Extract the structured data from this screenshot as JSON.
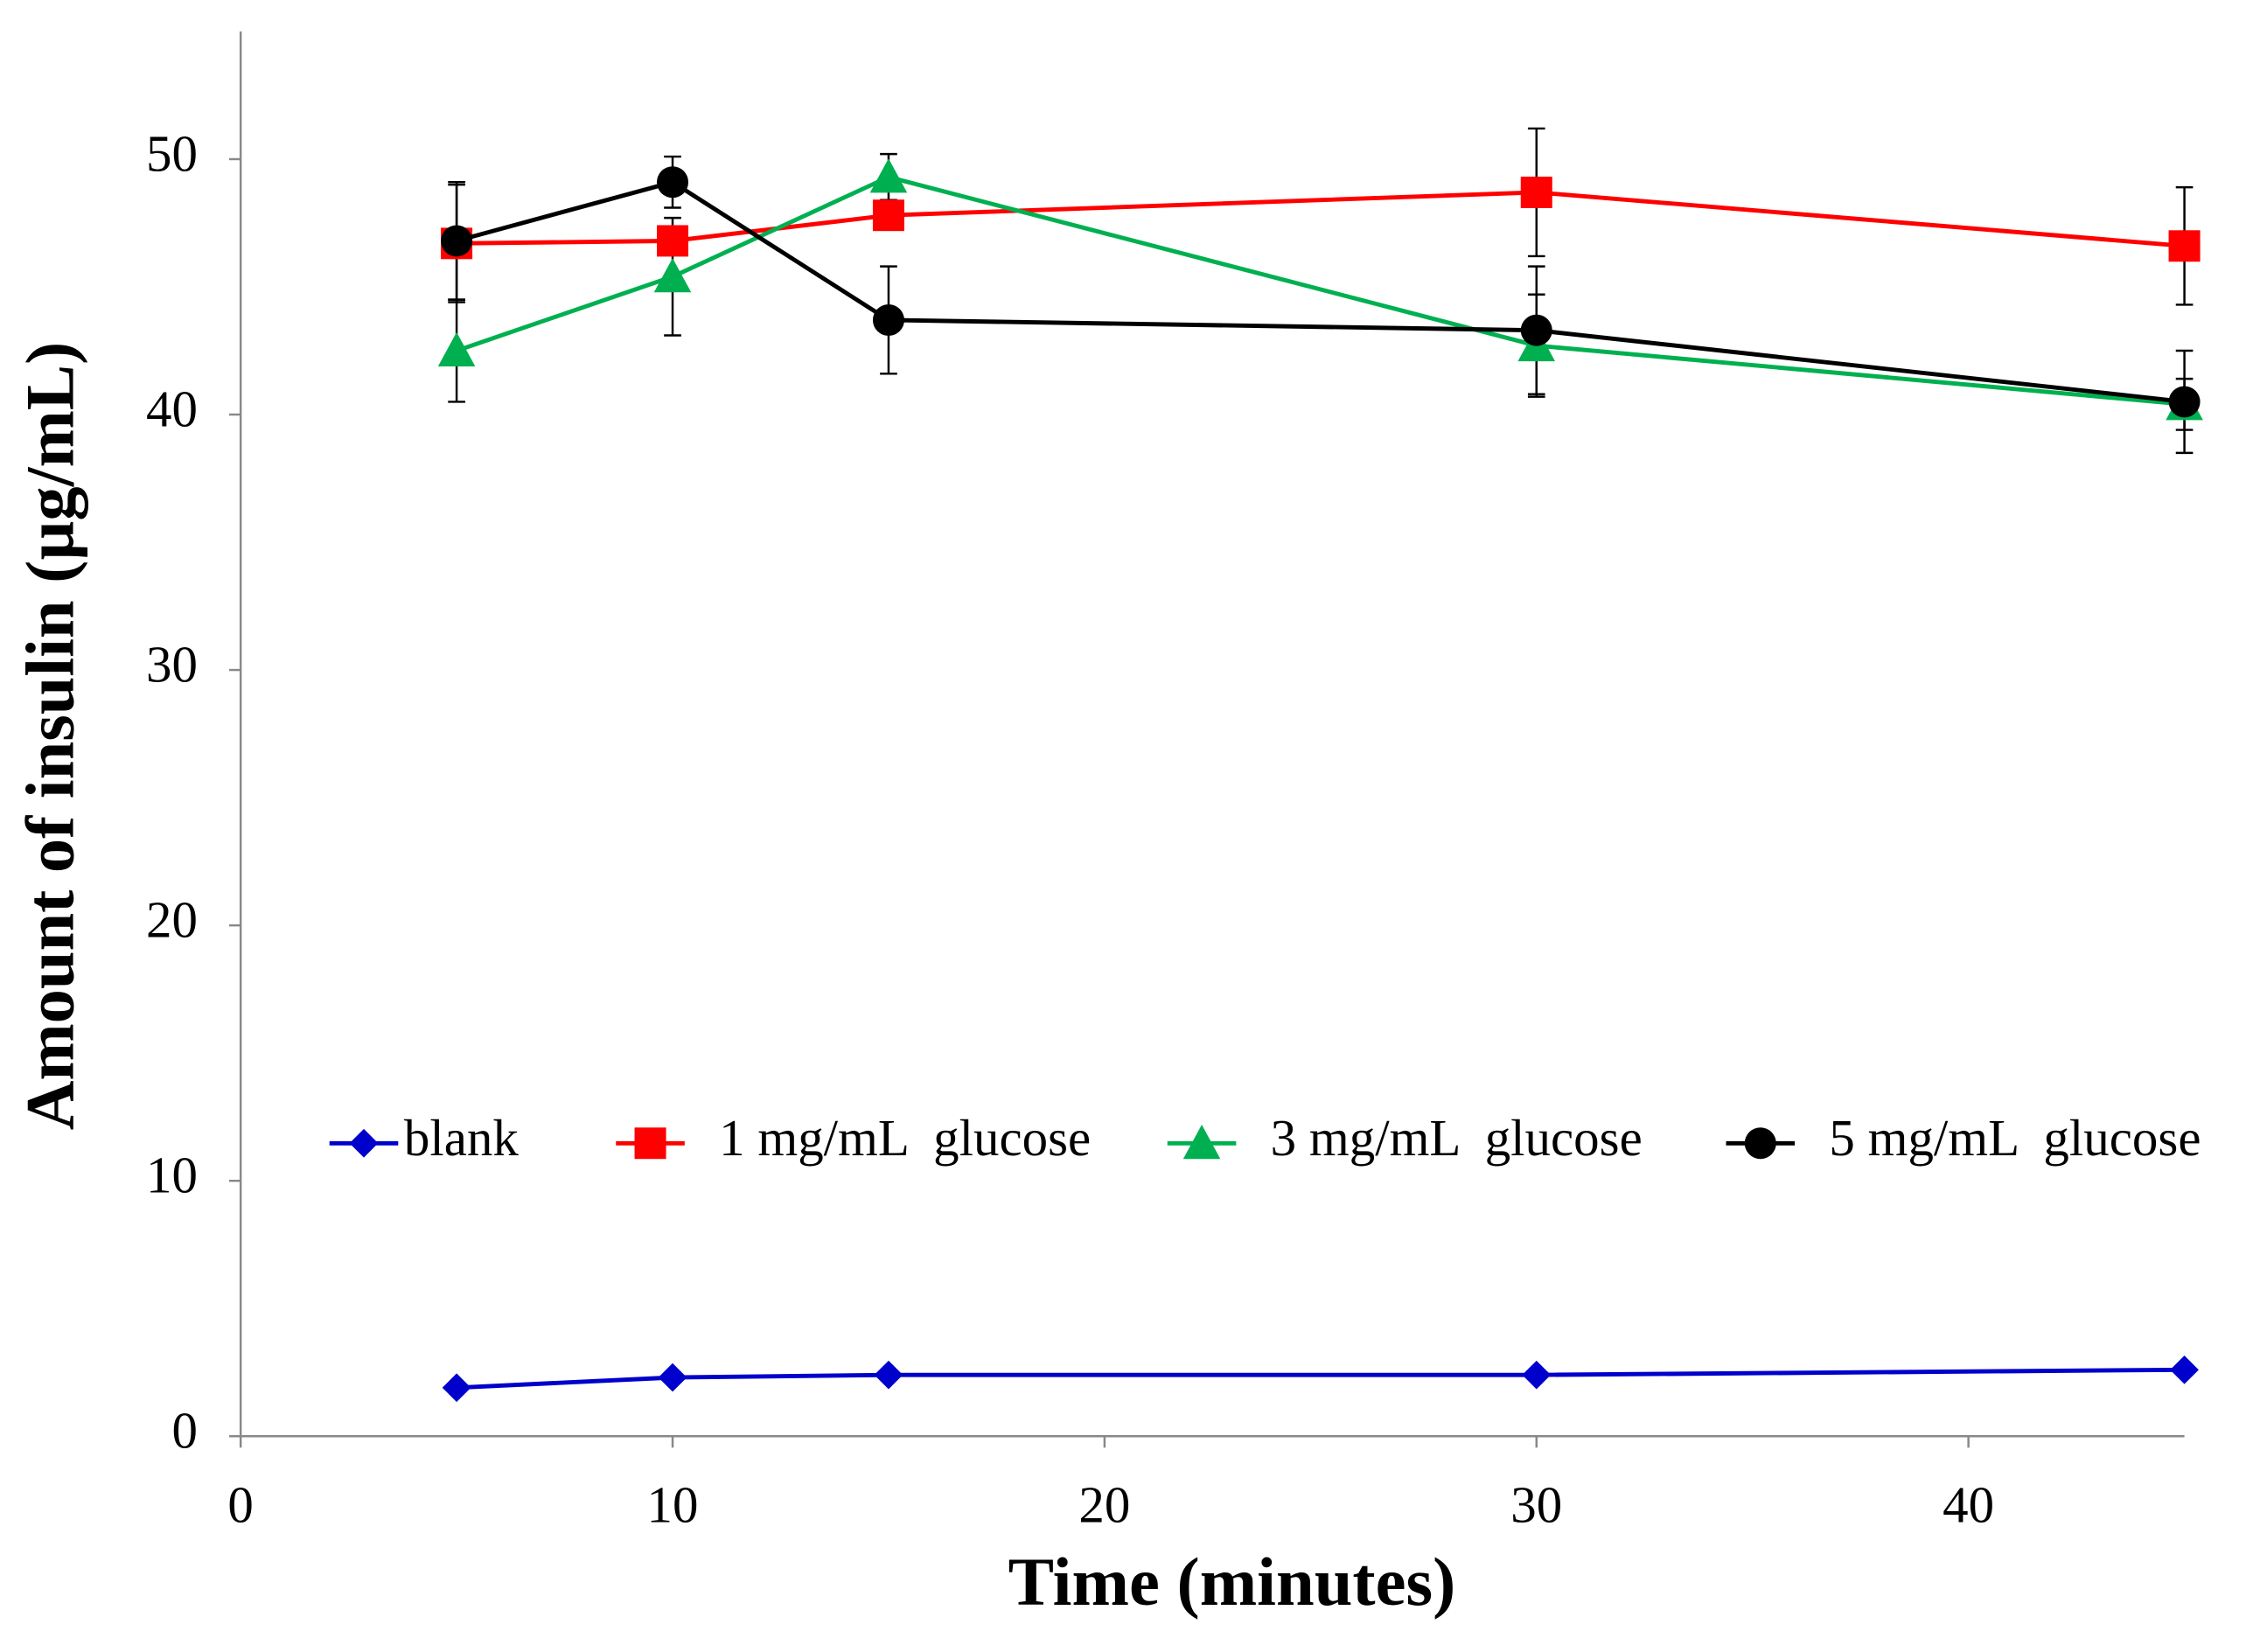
{
  "chart_data": {
    "type": "line",
    "xlabel": "Time (minutes)",
    "ylabel": "Amount of insulin (µg/mL)",
    "x": [
      5,
      10,
      15,
      30,
      45
    ],
    "series": [
      {
        "name": "blank",
        "color": "#0000cc",
        "marker": "diamond",
        "values": [
          1.9,
          2.3,
          2.4,
          2.4,
          2.6
        ]
      },
      {
        "name": "1 mg/mL  glucose",
        "color": "#ff0000",
        "marker": "square",
        "values": [
          46.7,
          46.8,
          47.8,
          48.7,
          46.6
        ],
        "errors": [
          2.3,
          0.5,
          0.5,
          2.5,
          2.3
        ]
      },
      {
        "name": "3 mg/mL  glucose",
        "color": "#00b050",
        "marker": "triangle",
        "values": [
          42.5,
          45.4,
          49.3,
          42.7,
          40.4
        ],
        "errors": [
          2.0,
          2.3,
          0.9,
          2.0,
          1.0
        ]
      },
      {
        "name": "5 mg/mL  glucose",
        "color": "#000000",
        "marker": "circle",
        "values": [
          46.8,
          49.1,
          43.7,
          43.3,
          40.5
        ],
        "errors": [
          2.3,
          1.0,
          2.1,
          2.5,
          2.0
        ]
      }
    ],
    "xlim": [
      0,
      45
    ],
    "xticks": [
      0,
      10,
      20,
      30,
      40
    ],
    "ylim": [
      0,
      55
    ],
    "yticks": [
      0,
      10,
      20,
      30,
      40,
      50
    ],
    "grid": false,
    "legend": "inside"
  }
}
